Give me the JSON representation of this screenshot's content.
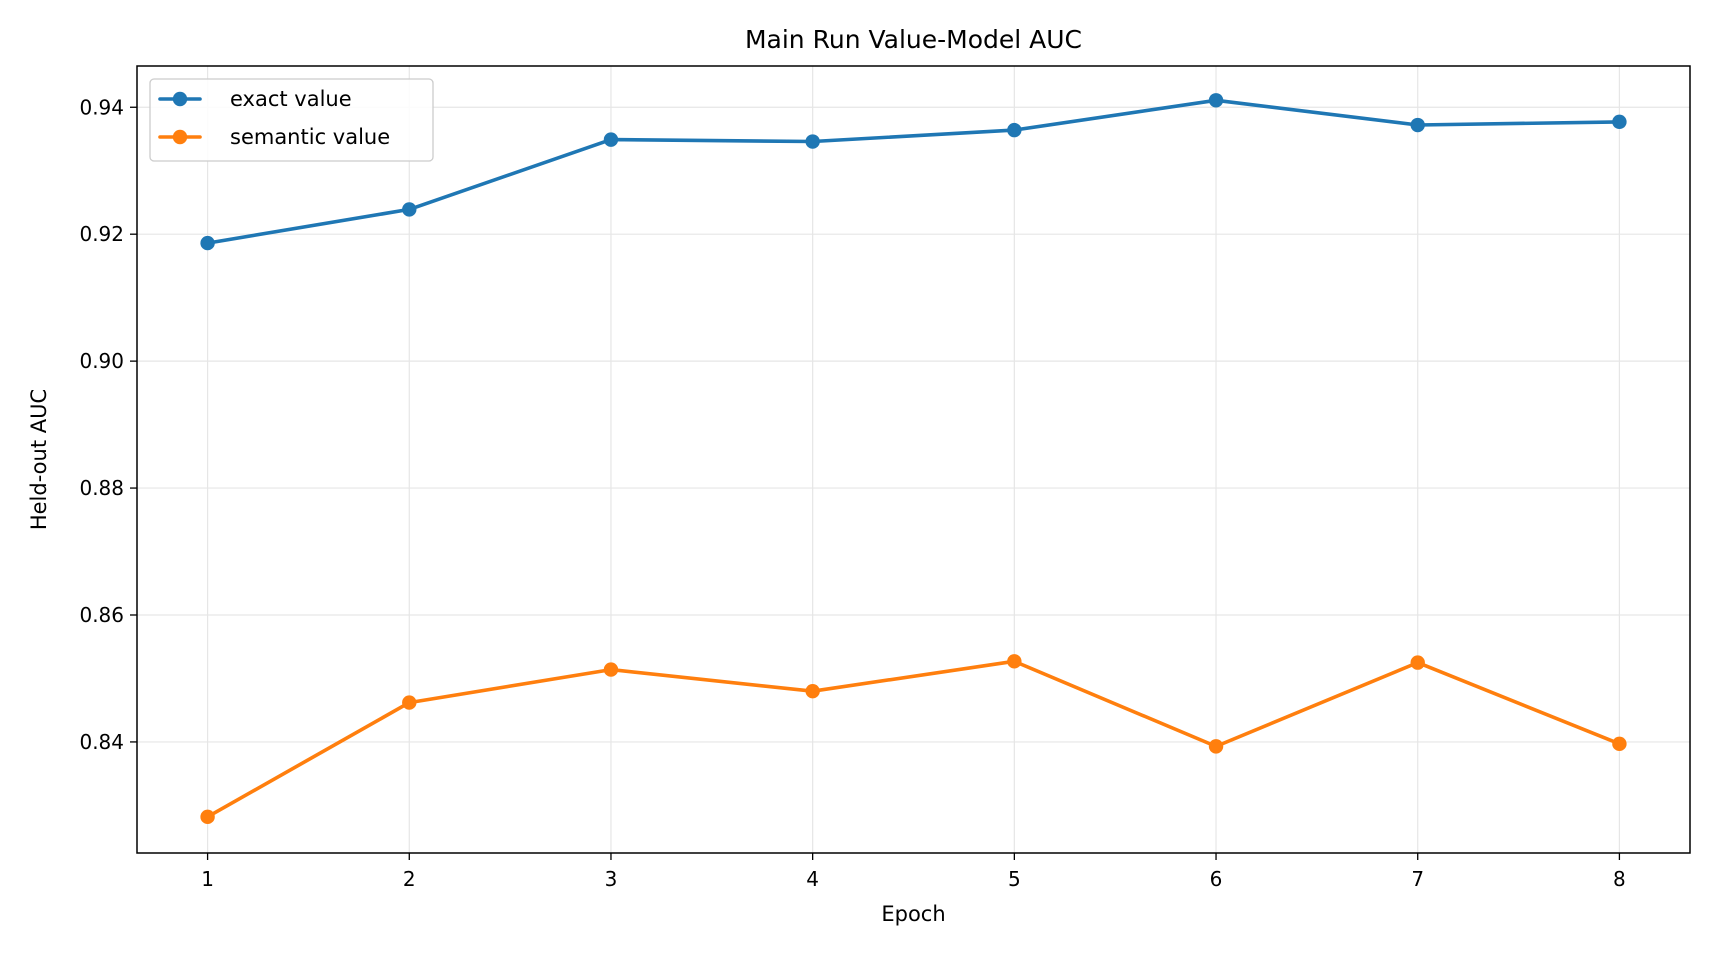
{
  "chart_data": {
    "type": "line",
    "title": "Main Run Value-Model AUC",
    "xlabel": "Epoch",
    "ylabel": "Held-out AUC",
    "x": [
      1,
      2,
      3,
      4,
      5,
      6,
      7,
      8
    ],
    "xlim": [
      0.65,
      8.35
    ],
    "ylim": [
      0.8225,
      0.9465
    ],
    "xticks": [
      1,
      2,
      3,
      4,
      5,
      6,
      7,
      8
    ],
    "yticks": [
      0.84,
      0.86,
      0.88,
      0.9,
      0.92,
      0.94
    ],
    "ytick_labels": [
      "0.84",
      "0.86",
      "0.88",
      "0.90",
      "0.92",
      "0.94"
    ],
    "grid": true,
    "legend_position": "top-left",
    "series": [
      {
        "name": "exact value",
        "color": "#1f77b4",
        "values": [
          0.9186,
          0.9239,
          0.9349,
          0.9346,
          0.9364,
          0.9411,
          0.9372,
          0.9377
        ]
      },
      {
        "name": "semantic value",
        "color": "#ff7f0e",
        "values": [
          0.8282,
          0.8462,
          0.8514,
          0.848,
          0.8527,
          0.8393,
          0.8525,
          0.8397
        ]
      }
    ]
  }
}
